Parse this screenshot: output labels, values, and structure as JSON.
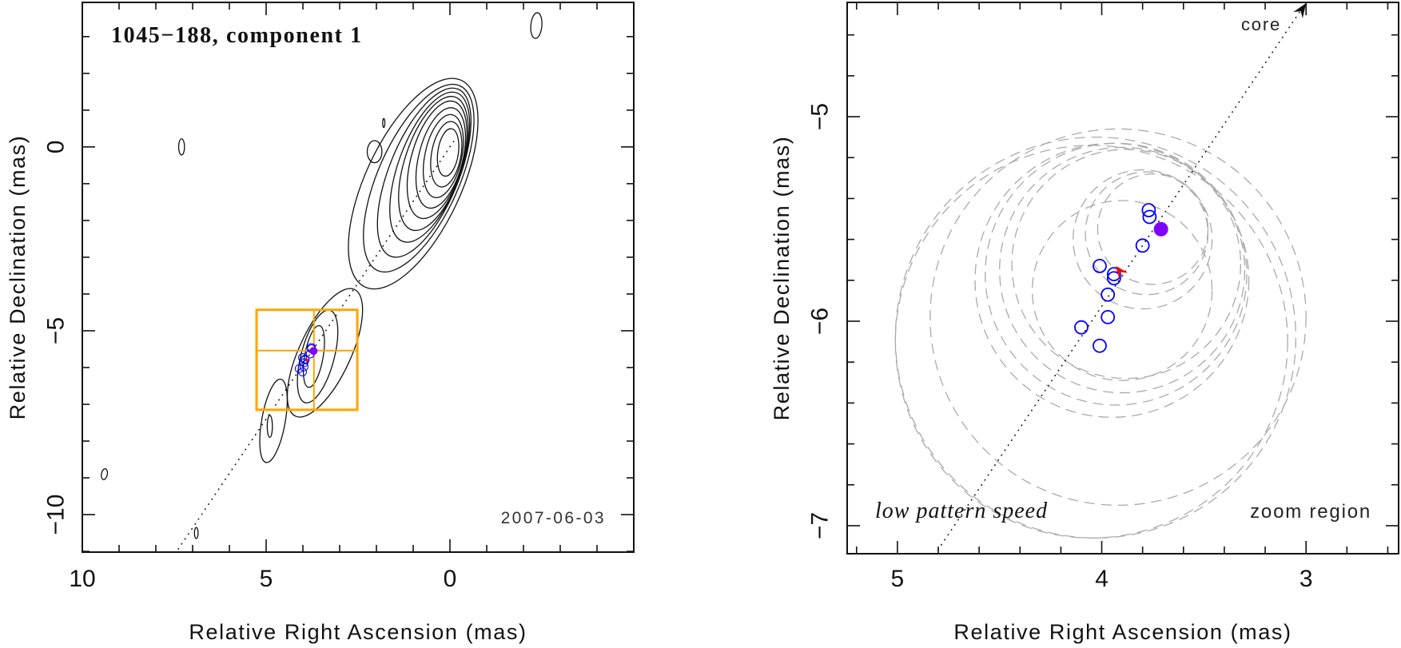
{
  "chart_data": [
    {
      "type": "contour",
      "title": "1045−188, component 1",
      "annotation": "2007-06-03",
      "xlabel": "Relative Right Ascension (mas)",
      "ylabel": "Relative Declination (mas)",
      "xlim": [
        10,
        -5
      ],
      "ylim": [
        -11.02,
        3.93
      ],
      "xticks": [
        {
          "v": 10,
          "label": "10"
        },
        {
          "v": 5,
          "label": "5"
        },
        {
          "v": 0,
          "label": "0"
        }
      ],
      "yticks": [
        {
          "v": 0,
          "label": "0"
        },
        {
          "v": -5,
          "label": "−5"
        },
        {
          "v": -10,
          "label": "−10"
        }
      ],
      "minor_step": 1,
      "major_step": 5,
      "contours": [
        {
          "cx": 1.0,
          "cy": -1.0,
          "a": 3.1,
          "b": 1.3,
          "rot": 25
        },
        {
          "cx": 0.85,
          "cy": -0.85,
          "a": 2.75,
          "b": 1.1,
          "rot": 24
        },
        {
          "cx": 0.7,
          "cy": -0.7,
          "a": 2.45,
          "b": 0.95,
          "rot": 22
        },
        {
          "cx": 0.55,
          "cy": -0.55,
          "a": 2.15,
          "b": 0.85,
          "rot": 20
        },
        {
          "cx": 0.45,
          "cy": -0.45,
          "a": 1.9,
          "b": 0.78,
          "rot": 18
        },
        {
          "cx": 0.35,
          "cy": -0.35,
          "a": 1.65,
          "b": 0.7,
          "rot": 16
        },
        {
          "cx": 0.25,
          "cy": -0.3,
          "a": 1.4,
          "b": 0.6,
          "rot": 14
        },
        {
          "cx": 0.18,
          "cy": -0.25,
          "a": 1.15,
          "b": 0.5,
          "rot": 12
        },
        {
          "cx": 0.1,
          "cy": -0.2,
          "a": 0.9,
          "b": 0.4,
          "rot": 10
        },
        {
          "cx": 0.05,
          "cy": -0.15,
          "a": 0.65,
          "b": 0.28,
          "rot": 8
        },
        {
          "cx": 3.4,
          "cy": -5.6,
          "a": 1.9,
          "b": 0.7,
          "rot": 25
        },
        {
          "cx": 3.6,
          "cy": -5.7,
          "a": 1.3,
          "b": 0.45,
          "rot": 15
        },
        {
          "cx": 3.7,
          "cy": -5.7,
          "a": 0.85,
          "b": 0.25,
          "rot": 10
        },
        {
          "cx": 4.8,
          "cy": -7.45,
          "a": 1.15,
          "b": 0.32,
          "rot": 10
        },
        {
          "cx": 4.9,
          "cy": -7.6,
          "a": 0.3,
          "b": 0.07,
          "rot": 0
        },
        {
          "cx": -2.35,
          "cy": 3.3,
          "a": 0.35,
          "b": 0.15,
          "rot": 5
        },
        {
          "cx": 7.3,
          "cy": 0.0,
          "a": 0.22,
          "b": 0.08,
          "rot": 0
        },
        {
          "cx": 2.05,
          "cy": -0.13,
          "a": 0.3,
          "b": 0.2,
          "rot": 0
        },
        {
          "cx": 1.8,
          "cy": 0.65,
          "a": 0.12,
          "b": 0.03,
          "rot": 0
        },
        {
          "cx": 9.4,
          "cy": -8.9,
          "a": 0.15,
          "b": 0.08,
          "rot": 10
        },
        {
          "cx": 6.9,
          "cy": -10.5,
          "a": 0.15,
          "b": 0.05,
          "rot": 0
        }
      ],
      "jet_axis": {
        "slope": -1.48,
        "x_from": -0.1,
        "x_to": 7.45
      },
      "zoom_box": {
        "x": [
          5.26,
          2.52
        ],
        "y": [
          -7.15,
          -4.43
        ],
        "cross": [
          3.7,
          -5.54
        ]
      },
      "components": [
        {
          "x": 3.77,
          "y": -5.457
        },
        {
          "x": 3.766,
          "y": -5.49
        },
        {
          "x": 3.8,
          "y": -5.63
        },
        {
          "x": 4.01,
          "y": -5.73
        },
        {
          "x": 3.94,
          "y": -5.77
        },
        {
          "x": 3.94,
          "y": -5.79
        },
        {
          "x": 3.97,
          "y": -5.87
        },
        {
          "x": 3.97,
          "y": -5.98
        },
        {
          "x": 4.1,
          "y": -6.03
        },
        {
          "x": 4.01,
          "y": -6.12
        }
      ],
      "reference_component": {
        "x": 3.71,
        "y": -5.55
      },
      "marker": {
        "x": 3.93,
        "y": -5.73,
        "from_x": 3.87,
        "from_y": -5.81
      }
    },
    {
      "type": "scatter",
      "xlabel": "Relative Right Ascension (mas)",
      "ylabel": "Relative Declination (mas)",
      "xlim": [
        5.246,
        2.547
      ],
      "ylim": [
        -7.137,
        -4.441
      ],
      "xticks": [
        {
          "v": 5,
          "label": "5"
        },
        {
          "v": 4,
          "label": "4"
        },
        {
          "v": 3,
          "label": "3"
        }
      ],
      "yticks": [
        {
          "v": -5,
          "label": "−5"
        },
        {
          "v": -6,
          "label": "−6"
        },
        {
          "v": -7,
          "label": "−7"
        }
      ],
      "minor_step": 0.2,
      "major_step": 1,
      "annotations": {
        "core": "core",
        "speed": "low pattern speed",
        "region": "zoom region"
      },
      "uncertainty_circles": [
        {
          "x": 4.03,
          "y": -6.08,
          "r": 0.98
        },
        {
          "x": 4.05,
          "y": -6.1,
          "r": 0.96
        },
        {
          "x": 3.92,
          "y": -5.98,
          "r": 0.92
        },
        {
          "x": 3.93,
          "y": -5.77,
          "r": 0.64
        },
        {
          "x": 3.9,
          "y": -5.75,
          "r": 0.6
        },
        {
          "x": 3.95,
          "y": -5.8,
          "r": 0.67
        },
        {
          "x": 3.88,
          "y": -5.72,
          "r": 0.56
        },
        {
          "x": 3.9,
          "y": -5.85,
          "r": 0.44
        },
        {
          "x": 3.78,
          "y": -5.57,
          "r": 0.3
        },
        {
          "x": 3.8,
          "y": -5.6,
          "r": 0.34
        },
        {
          "x": 3.75,
          "y": -5.55,
          "r": 0.27
        }
      ],
      "jet_axis": {
        "slope": -1.486,
        "x_from": 3.0,
        "x_to": 4.81
      },
      "core_arrow_tip": {
        "x": 3.0,
        "y": -4.441
      },
      "components": [
        {
          "x": 3.77,
          "y": -5.457
        },
        {
          "x": 3.766,
          "y": -5.49
        },
        {
          "x": 3.8,
          "y": -5.63
        },
        {
          "x": 4.01,
          "y": -5.73
        },
        {
          "x": 3.94,
          "y": -5.77
        },
        {
          "x": 3.94,
          "y": -5.79
        },
        {
          "x": 3.97,
          "y": -5.87
        },
        {
          "x": 3.97,
          "y": -5.98
        },
        {
          "x": 4.1,
          "y": -6.03
        },
        {
          "x": 4.01,
          "y": -6.12
        }
      ],
      "reference_component": {
        "x": 3.71,
        "y": -5.55
      },
      "marker": {
        "x": 3.93,
        "y": -5.73,
        "from_x": 3.87,
        "from_y": -5.81
      }
    }
  ],
  "colors": {
    "component": "#0000ff",
    "reference": "#7f00ff",
    "marker": "#ff0000",
    "zoom_box": "#ffa500",
    "circles": "#aaaaaa",
    "contour": "#111111"
  }
}
